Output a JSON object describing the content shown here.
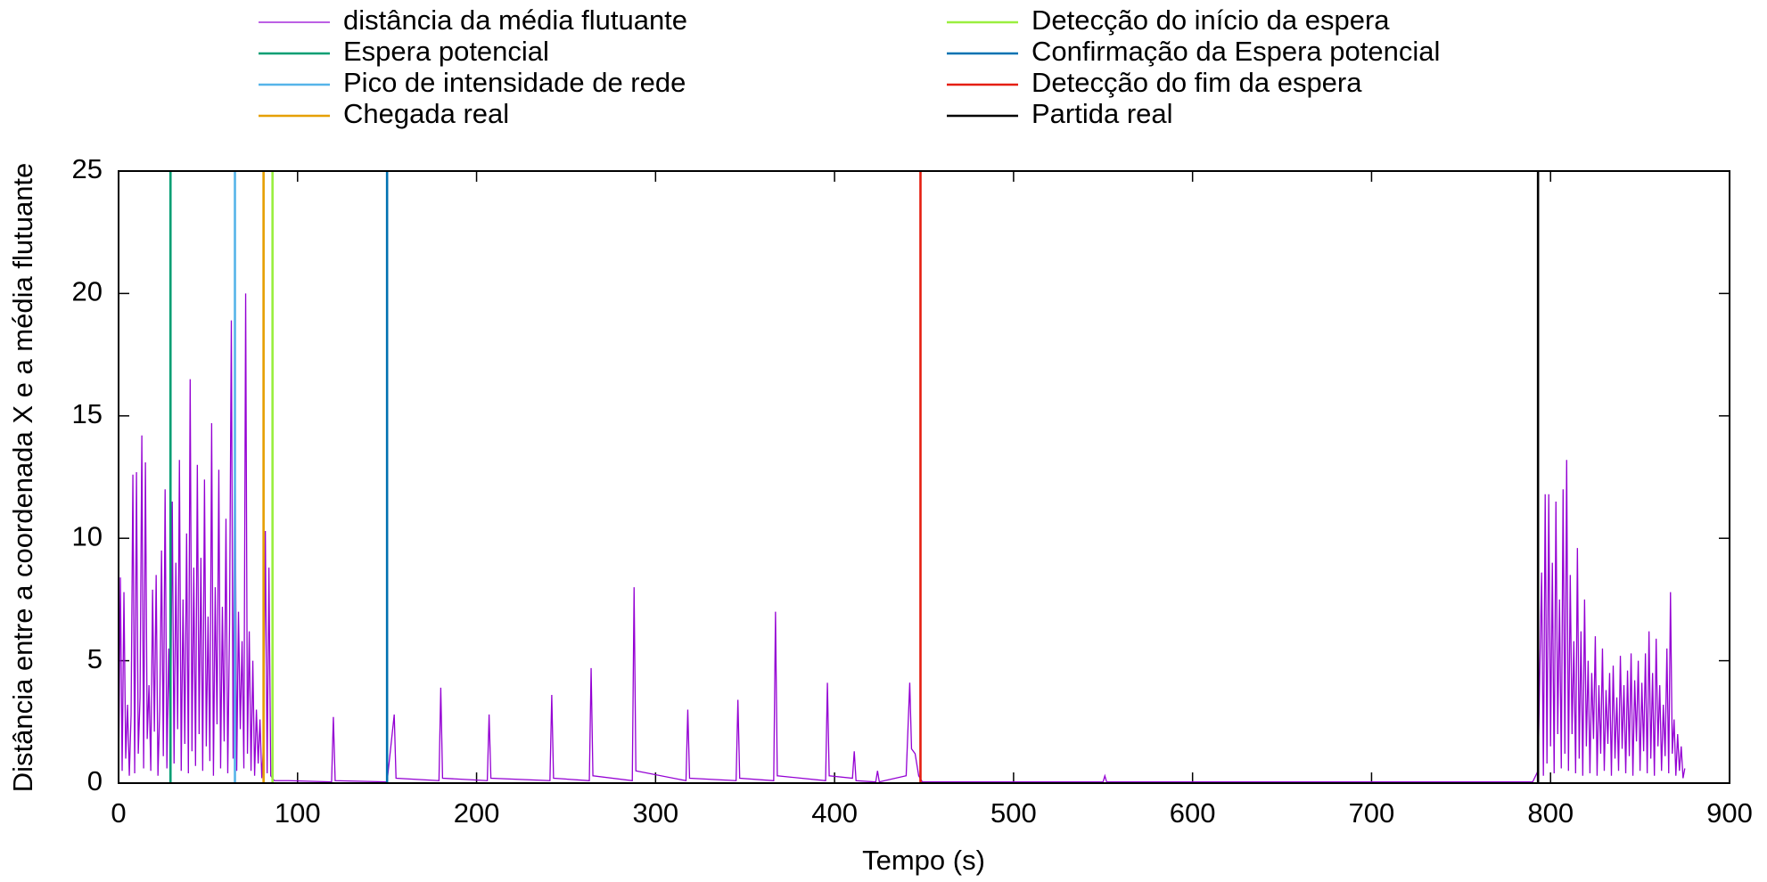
{
  "chart_data": {
    "type": "line",
    "x_label": "Tempo (s)",
    "y_label": "Distância entre a coordenada X e a média flutuante",
    "xlim": [
      0,
      900
    ],
    "xticks": [
      0,
      100,
      200,
      300,
      400,
      500,
      600,
      700,
      800,
      900
    ],
    "ylim": [
      0,
      25
    ],
    "yticks": [
      0,
      5,
      10,
      15,
      20,
      25
    ],
    "legend": "top",
    "series": [
      {
        "name": "distância da média flutuante",
        "color": "#9400d3",
        "x": [
          0,
          1,
          2,
          3,
          4,
          5,
          6,
          7,
          8,
          9,
          10,
          11,
          12,
          13,
          14,
          15,
          16,
          17,
          18,
          19,
          20,
          21,
          22,
          23,
          24,
          25,
          26,
          27,
          28,
          29,
          30,
          31,
          32,
          33,
          34,
          35,
          36,
          37,
          38,
          39,
          40,
          41,
          42,
          43,
          44,
          45,
          46,
          47,
          48,
          49,
          50,
          51,
          52,
          53,
          54,
          55,
          56,
          57,
          58,
          59,
          60,
          61,
          62,
          63,
          64,
          65,
          66,
          67,
          68,
          69,
          70,
          71,
          72,
          73,
          74,
          75,
          76,
          77,
          78,
          79,
          80,
          81,
          82,
          83,
          84,
          85,
          86,
          87,
          88,
          95,
          119,
          120,
          121,
          150,
          154,
          155,
          179,
          180,
          181,
          206,
          207,
          208,
          241,
          242,
          243,
          263,
          264,
          265,
          287,
          288,
          289,
          317,
          318,
          319,
          345,
          346,
          347,
          366,
          367,
          368,
          395,
          396,
          397,
          410,
          411,
          412,
          423,
          424,
          425,
          440,
          442,
          443,
          445,
          447,
          449,
          550,
          551,
          552,
          790,
          793,
          795,
          796,
          797,
          798,
          799,
          800,
          801,
          802,
          803,
          804,
          805,
          806,
          807,
          808,
          809,
          810,
          811,
          812,
          813,
          814,
          815,
          816,
          817,
          818,
          819,
          820,
          821,
          822,
          823,
          824,
          825,
          826,
          827,
          828,
          829,
          830,
          831,
          832,
          833,
          834,
          835,
          836,
          837,
          838,
          839,
          840,
          841,
          842,
          843,
          844,
          845,
          846,
          847,
          848,
          849,
          850,
          851,
          852,
          853,
          854,
          855,
          856,
          857,
          858,
          859,
          860,
          861,
          862,
          863,
          864,
          865,
          866,
          867,
          868,
          869,
          870,
          871,
          872,
          873,
          874,
          875
        ],
        "values": [
          0.2,
          8.4,
          0.5,
          7.8,
          1.0,
          3.2,
          0.3,
          2.8,
          12.6,
          0.4,
          12.7,
          1.2,
          3.5,
          14.2,
          0.6,
          13.1,
          1.8,
          4.0,
          0.5,
          7.9,
          2.1,
          8.5,
          0.3,
          3.0,
          9.5,
          1.1,
          12.0,
          0.6,
          5.5,
          1.4,
          11.5,
          0.8,
          9.0,
          2.2,
          13.2,
          0.5,
          7.5,
          1.6,
          10.2,
          0.4,
          16.5,
          1.3,
          8.8,
          0.7,
          13.0,
          2.0,
          9.2,
          0.5,
          12.4,
          1.5,
          6.8,
          0.9,
          14.7,
          0.3,
          8.0,
          2.4,
          12.8,
          0.6,
          7.2,
          1.7,
          10.8,
          0.4,
          6.5,
          18.9,
          1.0,
          14.7,
          0.5,
          7.0,
          2.2,
          5.8,
          0.6,
          20.0,
          1.2,
          6.2,
          0.5,
          5.0,
          0.3,
          3.0,
          0.8,
          2.6,
          0.2,
          1.6,
          10.3,
          0.4,
          8.8,
          0.3,
          0.2,
          0.1,
          0.1,
          0.1,
          0.05,
          2.7,
          0.1,
          0.05,
          2.8,
          0.2,
          0.1,
          3.9,
          0.2,
          0.1,
          2.8,
          0.2,
          0.1,
          3.6,
          0.2,
          0.1,
          4.7,
          0.3,
          0.1,
          8.0,
          0.5,
          0.1,
          3.0,
          0.2,
          0.1,
          3.4,
          0.2,
          0.1,
          7.0,
          0.3,
          0.1,
          4.1,
          0.3,
          0.2,
          1.3,
          0.1,
          0.05,
          0.5,
          0.05,
          0.3,
          4.1,
          1.4,
          1.2,
          0.3,
          0.05,
          0.05,
          0.3,
          0.05,
          0.05,
          0.5,
          8.6,
          0.3,
          11.8,
          0.8,
          11.8,
          1.5,
          9.0,
          0.4,
          11.5,
          2.0,
          7.5,
          0.6,
          12.0,
          1.2,
          13.2,
          0.5,
          8.5,
          2.0,
          5.8,
          0.4,
          9.6,
          1.0,
          6.2,
          0.3,
          7.5,
          1.5,
          5.0,
          0.4,
          4.5,
          1.8,
          6.0,
          0.3,
          4.0,
          1.2,
          5.5,
          0.5,
          3.8,
          1.6,
          4.5,
          0.3,
          4.8,
          1.0,
          3.5,
          0.5,
          5.2,
          1.4,
          4.0,
          0.4,
          4.6,
          1.1,
          5.3,
          0.3,
          4.2,
          1.7,
          5.0,
          0.5,
          4.1,
          1.3,
          5.3,
          0.4,
          6.2,
          1.0,
          4.5,
          0.3,
          5.9,
          1.5,
          4.0,
          0.5,
          3.2,
          1.1,
          5.5,
          0.4,
          7.8,
          1.2,
          2.6,
          0.3,
          2.0,
          0.5,
          1.5,
          0.2,
          0.6
        ]
      },
      {
        "name": "Espera potencial",
        "color": "#009e73",
        "x": [
          29,
          29
        ],
        "values": [
          0,
          25
        ]
      },
      {
        "name": "Pico de intensidade de rede",
        "color": "#56b4e9",
        "x": [
          65,
          65
        ],
        "values": [
          0,
          25
        ]
      },
      {
        "name": "Chegada real",
        "color": "#e69f00",
        "x": [
          81,
          81
        ],
        "values": [
          0,
          25
        ]
      },
      {
        "name": "Detecção do início da espera",
        "color": "#9aef3f",
        "x": [
          86,
          86
        ],
        "values": [
          0,
          25
        ]
      },
      {
        "name": "Confirmação da Espera potencial",
        "color": "#0072b2",
        "x": [
          150,
          150
        ],
        "values": [
          0,
          25
        ]
      },
      {
        "name": "Detecção do fim da espera",
        "color": "#e51e10",
        "x": [
          448,
          448
        ],
        "values": [
          0,
          25
        ]
      },
      {
        "name": "Partida real",
        "color": "#000000",
        "x": [
          793,
          793
        ],
        "values": [
          0,
          25
        ]
      }
    ]
  }
}
